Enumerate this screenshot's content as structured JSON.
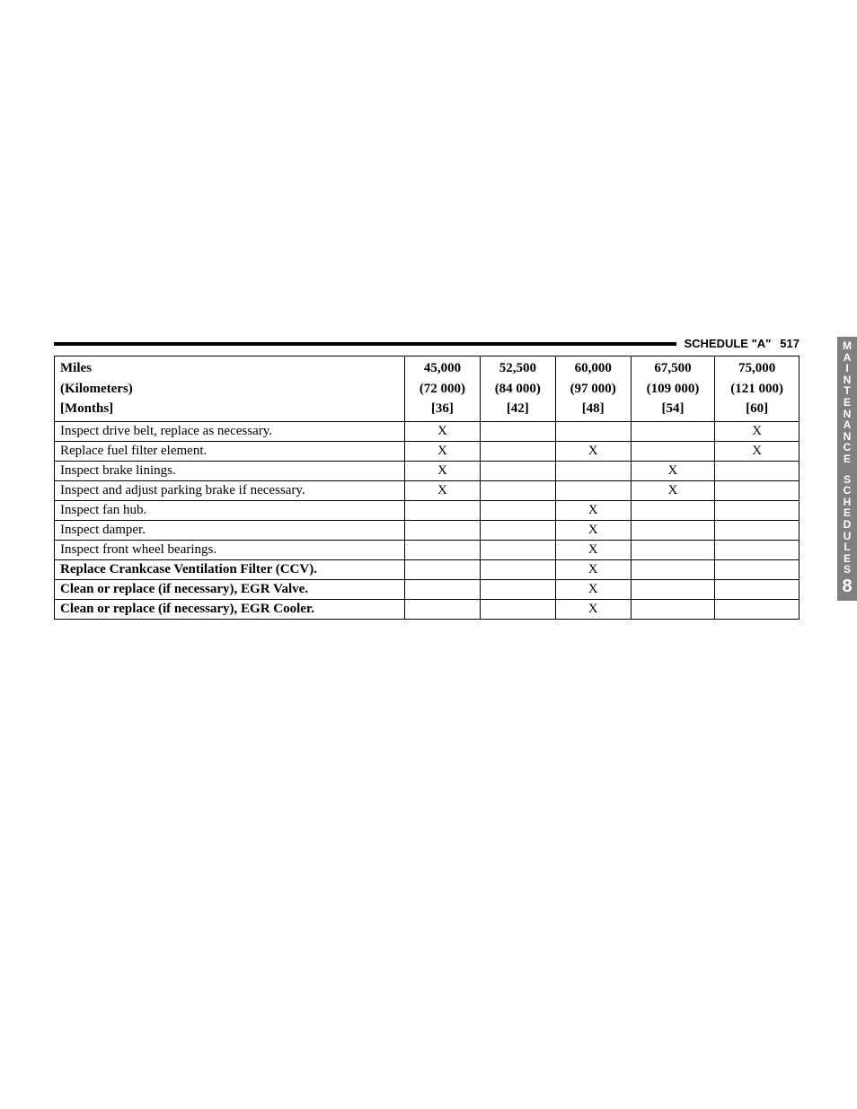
{
  "header": {
    "title": "SCHEDULE \"A\"",
    "page": "517"
  },
  "sideTab": {
    "word1": "MAINTENANCE",
    "word2": "SCHEDULES",
    "chapter": "8"
  },
  "table": {
    "headerLabels": {
      "miles": "Miles",
      "kilometers": "(Kilometers)",
      "months": "[Months]"
    },
    "columns": [
      {
        "miles": "45,000",
        "km": "(72 000)",
        "months": "[36]"
      },
      {
        "miles": "52,500",
        "km": "(84 000)",
        "months": "[42]"
      },
      {
        "miles": "60,000",
        "km": "(97 000)",
        "months": "[48]"
      },
      {
        "miles": "67,500",
        "km": "(109 000)",
        "months": "[54]"
      },
      {
        "miles": "75,000",
        "km": "(121 000)",
        "months": "[60]"
      }
    ],
    "rows": [
      {
        "label": "Inspect drive belt, replace as necessary.",
        "marks": [
          "X",
          "",
          "",
          "",
          "X"
        ],
        "bold": false
      },
      {
        "label": "Replace fuel filter element.",
        "marks": [
          "X",
          "",
          "X",
          "",
          "X"
        ],
        "bold": false
      },
      {
        "label": "Inspect brake linings.",
        "marks": [
          "X",
          "",
          "",
          "X",
          ""
        ],
        "bold": false
      },
      {
        "label": "Inspect and adjust parking brake if necessary.",
        "marks": [
          "X",
          "",
          "",
          "X",
          ""
        ],
        "bold": false
      },
      {
        "label": "Inspect fan hub.",
        "marks": [
          "",
          "",
          "X",
          "",
          ""
        ],
        "bold": false
      },
      {
        "label": "Inspect damper.",
        "marks": [
          "",
          "",
          "X",
          "",
          ""
        ],
        "bold": false
      },
      {
        "label": "Inspect front wheel bearings.",
        "marks": [
          "",
          "",
          "X",
          "",
          ""
        ],
        "bold": false
      },
      {
        "label": "Replace Crankcase Ventilation Filter (CCV).",
        "marks": [
          "",
          "",
          "X",
          "",
          ""
        ],
        "bold": true
      },
      {
        "label": "Clean or replace (if necessary), EGR Valve.",
        "marks": [
          "",
          "",
          "X",
          "",
          ""
        ],
        "bold": true
      },
      {
        "label": "Clean or replace (if necessary), EGR Cooler.",
        "marks": [
          "",
          "",
          "X",
          "",
          ""
        ],
        "bold": true
      }
    ]
  }
}
